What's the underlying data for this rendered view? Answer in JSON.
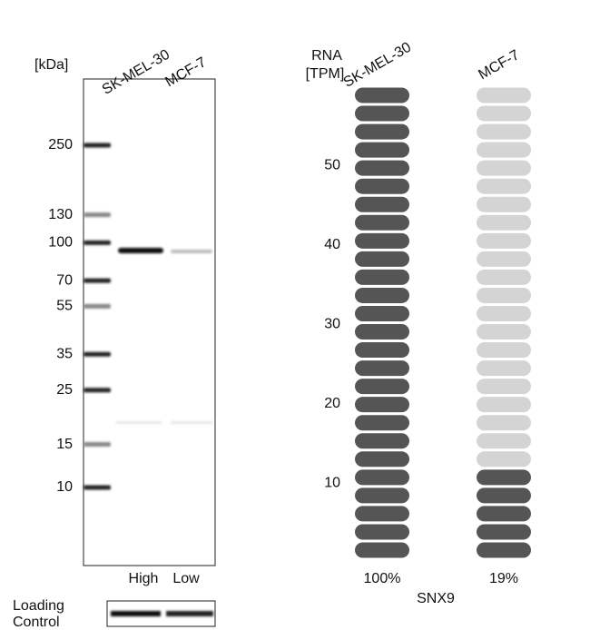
{
  "western_blot": {
    "unit_label": "[kDa]",
    "lanes": [
      "SK-MEL-30",
      "MCF-7"
    ],
    "markers": [
      250,
      130,
      100,
      70,
      55,
      35,
      25,
      15,
      10
    ],
    "expression": [
      "High",
      "Low"
    ],
    "loading_control": [
      "Loading",
      "Control"
    ]
  },
  "rna_chart": {
    "type": "pill",
    "y_label": [
      "RNA",
      "[TPM]"
    ],
    "ylim": [
      0,
      60
    ],
    "yticks": [
      10,
      20,
      30,
      40,
      50
    ],
    "pill_count": 26,
    "series": [
      {
        "name": "SK-MEL-30",
        "percent": 100,
        "value_label": "100%",
        "color": "#555555"
      },
      {
        "name": "MCF-7",
        "percent": 19,
        "value_label": "19%",
        "color": "#555555"
      }
    ],
    "empty_color": "#d4d4d4",
    "gene": "SNX9"
  }
}
